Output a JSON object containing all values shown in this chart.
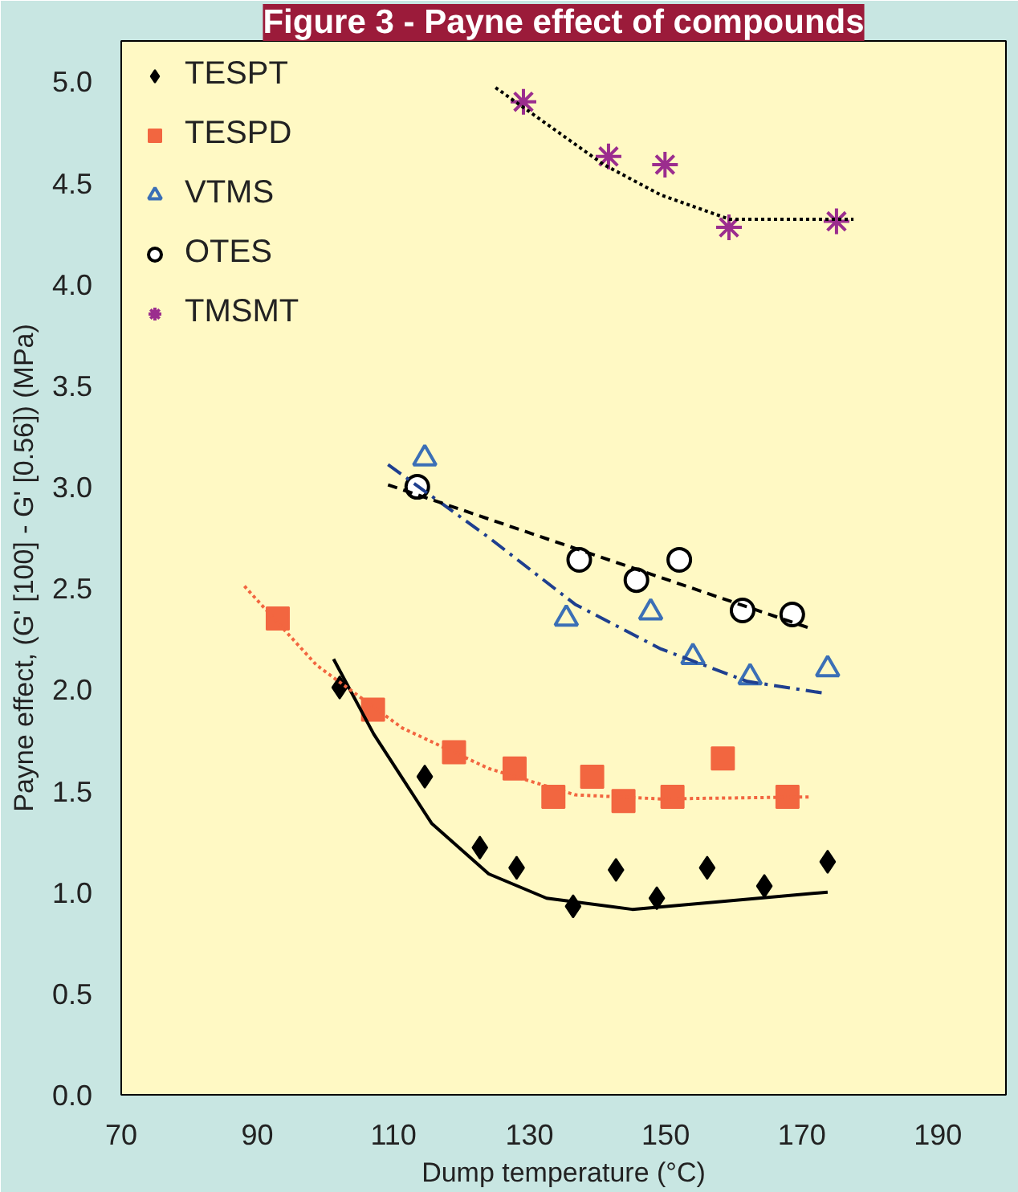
{
  "chart_data": {
    "type": "scatter",
    "title": "Figure 3 - Payne effect of compounds",
    "xlabel": "Dump temperature (°C)",
    "ylabel": "Payne effect, (G' [100] - G' [0.56]) (MPa)",
    "xlim": [
      70,
      200
    ],
    "ylim": [
      0,
      5.2
    ],
    "xticks": [
      70,
      90,
      110,
      130,
      150,
      170,
      190
    ],
    "yticks": [
      {
        "value": 0,
        "label": "0.0"
      },
      {
        "value": 0.5,
        "label": "0.5"
      },
      {
        "value": 1,
        "label": "1.0"
      },
      {
        "value": 1.5,
        "label": "1.5"
      },
      {
        "value": 2,
        "label": "2.0"
      },
      {
        "value": 2.5,
        "label": "2.5"
      },
      {
        "value": 3,
        "label": "3.0"
      },
      {
        "value": 3.5,
        "label": "3.5"
      },
      {
        "value": 4,
        "label": "4.0"
      },
      {
        "value": 4.5,
        "label": "4.5"
      },
      {
        "value": 5,
        "label": "5.0"
      }
    ],
    "grid": false,
    "legend": "top left",
    "series": [
      {
        "name": "TESPT",
        "marker": "diamond",
        "color": "#000000",
        "x": [
          102.1,
          114.6,
          122.7,
          128.1,
          136.4,
          142.7,
          148.7,
          156.1,
          164.5,
          173.8
        ],
        "values": [
          2.01,
          1.57,
          1.22,
          1.12,
          0.93,
          1.11,
          0.97,
          1.12,
          1.03,
          1.15
        ]
      },
      {
        "name": "TESPD",
        "marker": "square",
        "color": "#f26640",
        "x": [
          93.0,
          107.0,
          118.9,
          127.8,
          133.5,
          139.2,
          143.8,
          151.0,
          158.4,
          167.9
        ],
        "values": [
          2.35,
          1.9,
          1.69,
          1.61,
          1.47,
          1.57,
          1.45,
          1.47,
          1.66,
          1.47
        ]
      },
      {
        "name": "VTMS",
        "marker": "triangle",
        "color": "#3b6fb6",
        "x": [
          114.6,
          135.4,
          147.8,
          154.0,
          162.4,
          173.8
        ],
        "values": [
          3.14,
          2.35,
          2.38,
          2.16,
          2.06,
          2.1
        ]
      },
      {
        "name": "OTES",
        "marker": "circle",
        "color": "#000000",
        "x": [
          113.5,
          137.3,
          145.7,
          152.0,
          161.3,
          168.6
        ],
        "values": [
          3.0,
          2.64,
          2.54,
          2.64,
          2.39,
          2.37
        ]
      },
      {
        "name": "TMSMT",
        "marker": "cross",
        "color": "#9b2d8e",
        "x": [
          129.1,
          141.6,
          149.9,
          159.3,
          175.1
        ],
        "values": [
          4.9,
          4.63,
          4.59,
          4.28,
          4.31
        ]
      },
      {
        "type": "line",
        "line_style": "solid",
        "color": "#000000",
        "x": [
          101.2,
          107.1,
          115.6,
          124.0,
          132.5,
          145.1,
          173.8
        ],
        "values": [
          2.15,
          1.78,
          1.34,
          1.09,
          0.97,
          0.915,
          1.0
        ]
      },
      {
        "type": "line",
        "line_style": "dotted",
        "color": "#f26640",
        "x": [
          88.1,
          98.7,
          111.3,
          124.0,
          136.7,
          149.3,
          171.3
        ],
        "values": [
          2.51,
          2.12,
          1.81,
          1.61,
          1.48,
          1.46,
          1.47
        ]
      },
      {
        "type": "line",
        "line_style": "dashdot",
        "color": "#1f3f8f",
        "x": [
          109.2,
          124.0,
          136.7,
          149.3,
          162.0,
          173.6
        ],
        "values": [
          3.11,
          2.75,
          2.42,
          2.2,
          2.04,
          1.98
        ]
      },
      {
        "type": "line",
        "line_style": "dashed",
        "color": "#000000",
        "x": [
          109.2,
          171.4
        ],
        "values": [
          3.01,
          2.3
        ]
      },
      {
        "type": "line",
        "line_style": "dotted",
        "color": "#000000",
        "x": [
          125.0,
          140.9,
          149.3,
          159.4,
          177.6
        ],
        "values": [
          4.97,
          4.59,
          4.44,
          4.32,
          4.32
        ]
      }
    ]
  }
}
